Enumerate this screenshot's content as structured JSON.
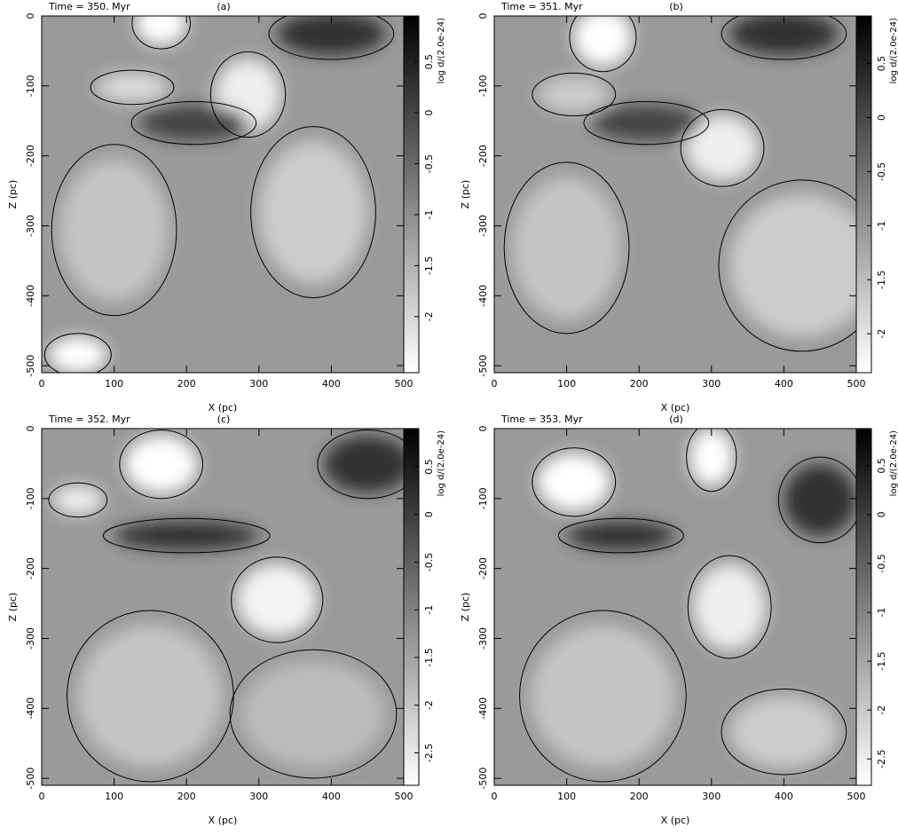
{
  "chart_data": [
    {
      "type": "heatmap",
      "title": "Time =   350. Myr",
      "label": "(a)",
      "x_label": "X (pc)",
      "y_label": "Z (pc)",
      "xlim": [
        0,
        500
      ],
      "ylim": [
        -510,
        0
      ],
      "xticks": [
        0,
        100,
        200,
        300,
        400,
        500
      ],
      "yticks": [
        0,
        -100,
        -200,
        -300,
        -400,
        -500
      ],
      "colorbar_label": "log d/(2.0e-24)",
      "clim": [
        -2.55,
        0.95
      ],
      "cticks": [
        0.5,
        0,
        -0.5,
        -1,
        -1.5,
        -2
      ],
      "colormap": "gray_r"
    },
    {
      "type": "heatmap",
      "title": "Time =   351. Myr",
      "label": "(b)",
      "x_label": "X (pc)",
      "y_label": "Z (pc)",
      "xlim": [
        0,
        500
      ],
      "ylim": [
        -510,
        0
      ],
      "xticks": [
        0,
        100,
        200,
        300,
        400,
        500
      ],
      "yticks": [
        0,
        -100,
        -200,
        -300,
        -400,
        -500
      ],
      "colorbar_label": "log d/(2.0e-24)",
      "clim": [
        -2.36,
        0.94
      ],
      "cticks": [
        0.5,
        0,
        -0.5,
        -1,
        -1.5,
        -2
      ],
      "colormap": "gray_r"
    },
    {
      "type": "heatmap",
      "title": "Time =   352. Myr",
      "label": "(c)",
      "x_label": "X (pc)",
      "y_label": "Z (pc)",
      "xlim": [
        0,
        500
      ],
      "ylim": [
        -510,
        0
      ],
      "xticks": [
        0,
        100,
        200,
        300,
        400,
        500
      ],
      "yticks": [
        0,
        -100,
        -200,
        -300,
        -400,
        -500
      ],
      "colorbar_label": "log d/(2.0e-24)",
      "clim": [
        -2.84,
        0.9
      ],
      "cticks": [
        0.5,
        0,
        -0.5,
        -1,
        -1.5,
        -2,
        -2.5
      ],
      "colormap": "gray_r"
    },
    {
      "type": "heatmap",
      "title": "Time =   353. Myr",
      "label": "(d)",
      "x_label": "X (pc)",
      "y_label": "Z (pc)",
      "xlim": [
        0,
        500
      ],
      "ylim": [
        -510,
        0
      ],
      "xticks": [
        0,
        100,
        200,
        300,
        400,
        500
      ],
      "yticks": [
        0,
        -100,
        -200,
        -300,
        -400,
        -500
      ],
      "colorbar_label": "log d/(2.0e-24)",
      "clim": [
        -2.77,
        0.88
      ],
      "cticks": [
        0.5,
        0,
        -0.5,
        -1,
        -1.5,
        -2,
        -2.5
      ],
      "colormap": "gray_r"
    }
  ]
}
